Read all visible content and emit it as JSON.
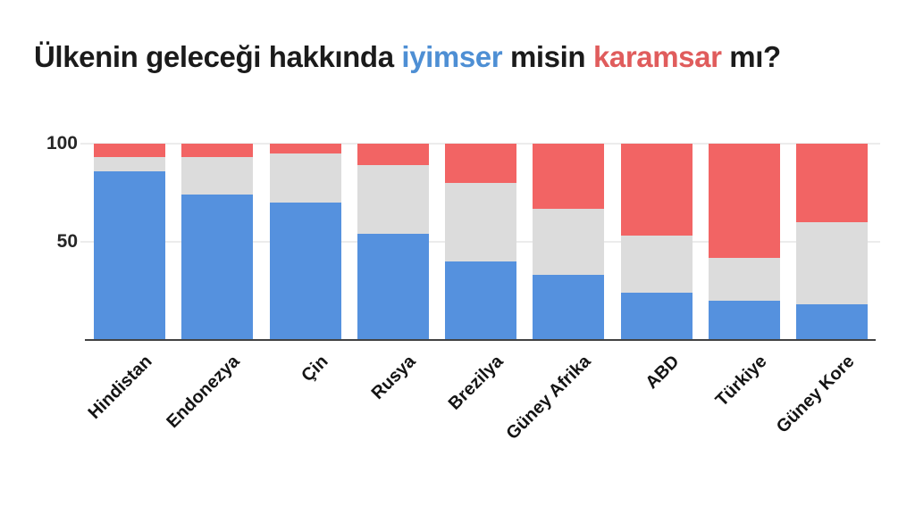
{
  "title": {
    "full_text": "Ülkenin geleceği hakkında iyimser misin karamsar mı?",
    "segments": [
      {
        "text": "Ülkenin geleceği hakkında ",
        "color": "#1b1b1b"
      },
      {
        "text": "iyimser",
        "color": "#4e8fd4"
      },
      {
        "text": " misin ",
        "color": "#1b1b1b"
      },
      {
        "text": "karamsar",
        "color": "#e05c5c"
      },
      {
        "text": " mı?",
        "color": "#1b1b1b"
      }
    ]
  },
  "chart_data": {
    "type": "bar",
    "variant": "stacked-100-percent",
    "title": "Ülkenin geleceği hakkında iyimser misin karamsar mı?",
    "categories": [
      "Hindistan",
      "Endonezya",
      "Çin",
      "Rusya",
      "Brezilya",
      "Güney Afrika",
      "ABD",
      "Türkiye",
      "Güney Kore"
    ],
    "series": [
      {
        "name": "iyimser",
        "position": "bottom",
        "color": "#5591de",
        "values": [
          86,
          74,
          70,
          54,
          40,
          33,
          24,
          20,
          18
        ]
      },
      {
        "name": "",
        "position": "middle",
        "color": "#dcdcdc",
        "values": [
          7,
          19,
          25,
          35,
          40,
          34,
          29,
          22,
          42
        ]
      },
      {
        "name": "karamsar",
        "position": "top",
        "color": "#f26464",
        "values": [
          7,
          7,
          5,
          11,
          20,
          33,
          47,
          58,
          40
        ]
      }
    ],
    "xlabel": "",
    "ylabel": "",
    "ylim": [
      0,
      100
    ],
    "y_ticks": [
      50,
      100
    ],
    "grid": true,
    "legend": false,
    "axis_color": "#424242",
    "gridline_color": "#ececec"
  }
}
